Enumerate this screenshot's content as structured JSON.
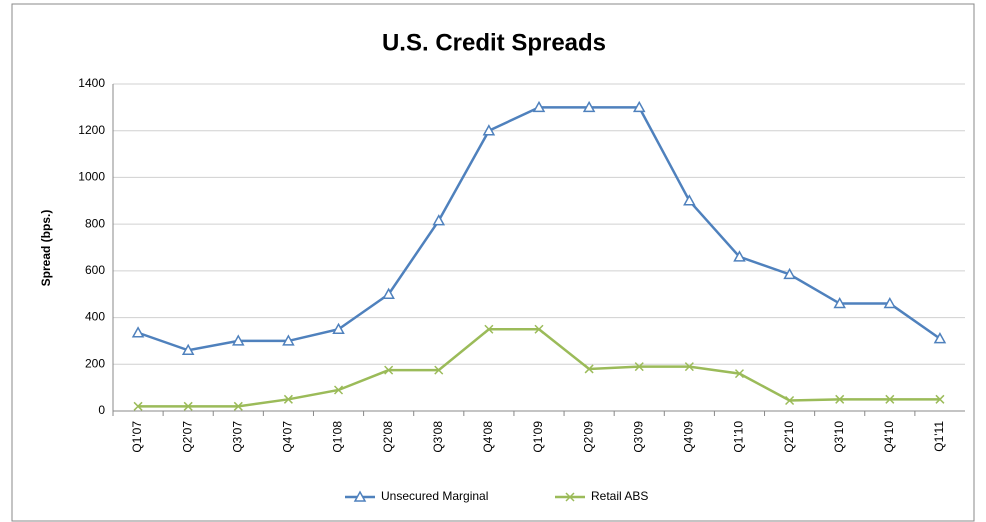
{
  "chart_data": {
    "type": "line",
    "title": "U.S. Credit Spreads",
    "y_label": "Spread (bps.)",
    "categories": [
      "Q1'07",
      "Q2'07",
      "Q3'07",
      "Q4'07",
      "Q1'08",
      "Q2'08",
      "Q3'08",
      "Q4'08",
      "Q1'09",
      "Q2'09",
      "Q3'09",
      "Q4'09",
      "Q1'10",
      "Q2'10",
      "Q3'10",
      "Q4'10",
      "Q1'11"
    ],
    "series": [
      {
        "name": "Unsecured Marginal",
        "color": "#4f81bd",
        "marker": "triangle",
        "values": [
          335,
          260,
          300,
          300,
          350,
          500,
          815,
          1200,
          1300,
          1300,
          1300,
          900,
          660,
          585,
          460,
          460,
          310
        ]
      },
      {
        "name": "Retail ABS",
        "color": "#9bbb59",
        "marker": "x",
        "values": [
          20,
          20,
          20,
          50,
          90,
          175,
          175,
          350,
          350,
          180,
          190,
          190,
          160,
          45,
          50,
          50,
          50
        ]
      }
    ],
    "ylim": [
      0,
      1400
    ],
    "yticks": [
      0,
      200,
      400,
      600,
      800,
      1000,
      1200,
      1400
    ],
    "grid": true,
    "legend": "bottom"
  }
}
